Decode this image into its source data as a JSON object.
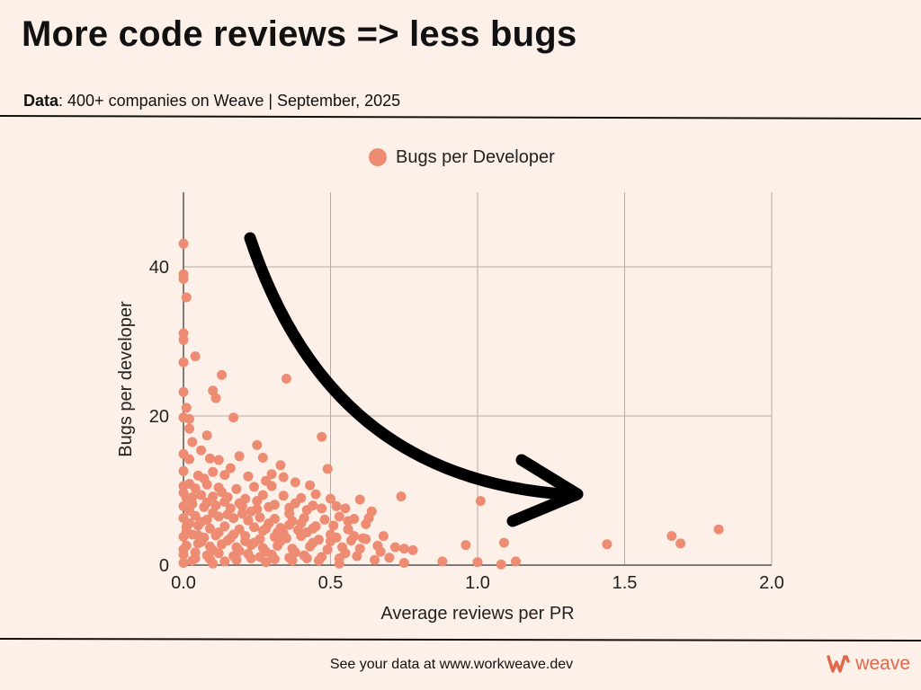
{
  "header": {
    "title": "More code reviews => less bugs",
    "subtitle_label": "Data",
    "subtitle_text": ": 400+ companies on Weave | September, 2025"
  },
  "footer": {
    "text": "See your data at www.workweave.dev",
    "brand_name": "weave"
  },
  "colors": {
    "point": "#ed8c73",
    "brand": "#e0674a",
    "background": "#fdf0e8",
    "grid": "#b8aaa4"
  },
  "chart_data": {
    "type": "scatter",
    "xlabel": "Average reviews per PR",
    "ylabel": "Bugs per developer",
    "xlim": [
      0,
      2
    ],
    "ylim": [
      0,
      50
    ],
    "xticks": [
      "0.0",
      "0.5",
      "1.0",
      "1.5",
      "2.0"
    ],
    "yticks": [
      "0",
      "20",
      "40"
    ],
    "grid": true,
    "legend_position": "top-center",
    "annotation": "downward-curving arrow from upper left to lower right",
    "series": [
      {
        "name": "Bugs per Developer",
        "points": [
          [
            0.0,
            43.1
          ],
          [
            0.0,
            39.0
          ],
          [
            0.0,
            38.4
          ],
          [
            0.01,
            35.9
          ],
          [
            0.0,
            31.1
          ],
          [
            0.0,
            30.2
          ],
          [
            0.04,
            28.0
          ],
          [
            0.0,
            27.2
          ],
          [
            0.0,
            23.2
          ],
          [
            0.01,
            21.1
          ],
          [
            0.0,
            19.8
          ],
          [
            0.02,
            19.6
          ],
          [
            0.13,
            25.5
          ],
          [
            0.35,
            25.0
          ],
          [
            0.1,
            23.4
          ],
          [
            0.11,
            22.4
          ],
          [
            0.17,
            19.8
          ],
          [
            0.02,
            18.3
          ],
          [
            0.03,
            16.5
          ],
          [
            0.08,
            17.4
          ],
          [
            0.47,
            17.2
          ],
          [
            0.25,
            16.1
          ],
          [
            0.0,
            14.9
          ],
          [
            0.02,
            14.2
          ],
          [
            0.06,
            15.4
          ],
          [
            0.09,
            14.3
          ],
          [
            0.12,
            14.1
          ],
          [
            0.19,
            14.6
          ],
          [
            0.27,
            14.4
          ],
          [
            0.33,
            13.4
          ],
          [
            0.49,
            12.9
          ],
          [
            0.0,
            12.6
          ],
          [
            0.05,
            12.0
          ],
          [
            0.1,
            12.5
          ],
          [
            0.14,
            12.1
          ],
          [
            0.22,
            11.9
          ],
          [
            0.3,
            12.2
          ],
          [
            0.0,
            10.6
          ],
          [
            0.04,
            10.3
          ],
          [
            0.08,
            10.8
          ],
          [
            0.12,
            10.4
          ],
          [
            0.18,
            10.2
          ],
          [
            0.24,
            10.5
          ],
          [
            0.3,
            10.6
          ],
          [
            0.38,
            11.1
          ],
          [
            0.43,
            10.7
          ],
          [
            0.01,
            9.0
          ],
          [
            0.06,
            9.4
          ],
          [
            0.1,
            9.2
          ],
          [
            0.15,
            9.1
          ],
          [
            0.21,
            8.9
          ],
          [
            0.27,
            9.4
          ],
          [
            0.34,
            9.3
          ],
          [
            0.4,
            9.0
          ],
          [
            0.45,
            9.5
          ],
          [
            0.5,
            8.9
          ],
          [
            0.74,
            9.2
          ],
          [
            1.01,
            8.6
          ],
          [
            0.0,
            7.9
          ],
          [
            0.03,
            8.2
          ],
          [
            0.07,
            7.8
          ],
          [
            0.11,
            8.0
          ],
          [
            0.16,
            7.6
          ],
          [
            0.2,
            7.9
          ],
          [
            0.25,
            7.5
          ],
          [
            0.29,
            7.8
          ],
          [
            0.36,
            7.7
          ],
          [
            0.42,
            7.4
          ],
          [
            0.47,
            7.6
          ],
          [
            0.55,
            7.6
          ],
          [
            0.6,
            8.8
          ],
          [
            0.64,
            7.2
          ],
          [
            0.0,
            6.3
          ],
          [
            0.04,
            6.6
          ],
          [
            0.08,
            6.1
          ],
          [
            0.12,
            6.5
          ],
          [
            0.17,
            6.3
          ],
          [
            0.22,
            6.0
          ],
          [
            0.26,
            6.4
          ],
          [
            0.31,
            6.2
          ],
          [
            0.37,
            5.9
          ],
          [
            0.41,
            6.3
          ],
          [
            0.48,
            6.1
          ],
          [
            0.53,
            6.5
          ],
          [
            0.58,
            6.2
          ],
          [
            0.63,
            6.3
          ],
          [
            0.01,
            5.1
          ],
          [
            0.05,
            5.3
          ],
          [
            0.09,
            4.9
          ],
          [
            0.14,
            5.2
          ],
          [
            0.19,
            4.8
          ],
          [
            0.24,
            5.1
          ],
          [
            0.28,
            4.9
          ],
          [
            0.33,
            5.0
          ],
          [
            0.39,
            4.7
          ],
          [
            0.44,
            4.9
          ],
          [
            0.51,
            5.3
          ],
          [
            0.56,
            4.8
          ],
          [
            0.0,
            3.8
          ],
          [
            0.03,
            4.1
          ],
          [
            0.07,
            3.7
          ],
          [
            0.11,
            4.0
          ],
          [
            0.16,
            3.6
          ],
          [
            0.21,
            3.9
          ],
          [
            0.26,
            3.5
          ],
          [
            0.31,
            3.8
          ],
          [
            0.35,
            3.6
          ],
          [
            0.4,
            3.9
          ],
          [
            0.46,
            3.4
          ],
          [
            0.52,
            3.7
          ],
          [
            0.57,
            3.3
          ],
          [
            0.62,
            3.5
          ],
          [
            0.68,
            3.9
          ],
          [
            0.01,
            2.6
          ],
          [
            0.05,
            2.9
          ],
          [
            0.09,
            2.5
          ],
          [
            0.13,
            2.8
          ],
          [
            0.18,
            2.4
          ],
          [
            0.23,
            2.7
          ],
          [
            0.27,
            2.3
          ],
          [
            0.32,
            2.6
          ],
          [
            0.37,
            2.2
          ],
          [
            0.43,
            2.5
          ],
          [
            0.49,
            2.1
          ],
          [
            0.54,
            2.4
          ],
          [
            0.6,
            2.2
          ],
          [
            0.66,
            2.6
          ],
          [
            0.72,
            2.4
          ],
          [
            0.75,
            2.2
          ],
          [
            0.78,
            2.0
          ],
          [
            0.96,
            2.7
          ],
          [
            1.09,
            3.0
          ],
          [
            0.0,
            1.4
          ],
          [
            0.04,
            1.7
          ],
          [
            0.08,
            1.3
          ],
          [
            0.12,
            1.6
          ],
          [
            0.17,
            1.2
          ],
          [
            0.22,
            1.5
          ],
          [
            0.26,
            1.1
          ],
          [
            0.3,
            1.4
          ],
          [
            0.36,
            1.0
          ],
          [
            0.41,
            1.3
          ],
          [
            0.47,
            1.1
          ],
          [
            0.53,
            0.9
          ],
          [
            0.59,
            1.2
          ],
          [
            0.65,
            0.7
          ],
          [
            0.7,
            1.0
          ],
          [
            0.0,
            0.3
          ],
          [
            0.03,
            0.6
          ],
          [
            0.1,
            0.2
          ],
          [
            0.14,
            0.5
          ],
          [
            0.28,
            0.4
          ],
          [
            0.46,
            0.6
          ],
          [
            0.53,
            0.2
          ],
          [
            0.75,
            0.3
          ],
          [
            0.88,
            0.5
          ],
          [
            1.0,
            0.4
          ],
          [
            1.08,
            0.1
          ],
          [
            1.13,
            0.5
          ],
          [
            1.44,
            2.8
          ],
          [
            1.66,
            3.9
          ],
          [
            1.69,
            2.9
          ],
          [
            1.82,
            4.8
          ],
          [
            0.02,
            7.3
          ],
          [
            0.06,
            5.8
          ],
          [
            0.1,
            7.0
          ],
          [
            0.15,
            6.8
          ],
          [
            0.2,
            6.9
          ],
          [
            0.25,
            8.6
          ],
          [
            0.29,
            5.6
          ],
          [
            0.34,
            4.3
          ],
          [
            0.38,
            8.3
          ],
          [
            0.42,
            4.4
          ],
          [
            0.02,
            10.9
          ],
          [
            0.07,
            11.6
          ],
          [
            0.13,
            9.8
          ],
          [
            0.16,
            13.0
          ],
          [
            0.28,
            11.3
          ],
          [
            0.34,
            11.8
          ],
          [
            0.01,
            4.5
          ],
          [
            0.06,
            3.1
          ],
          [
            0.1,
            2.0
          ],
          [
            0.15,
            3.3
          ],
          [
            0.19,
            1.9
          ],
          [
            0.24,
            3.0
          ],
          [
            0.28,
            1.8
          ],
          [
            0.33,
            3.2
          ],
          [
            0.38,
            1.7
          ],
          [
            0.44,
            3.0
          ],
          [
            0.5,
            3.2
          ],
          [
            0.55,
            1.6
          ],
          [
            0.61,
            3.6
          ],
          [
            0.67,
            1.8
          ],
          [
            0.0,
            2.1
          ],
          [
            0.04,
            0.9
          ],
          [
            0.09,
            0.8
          ],
          [
            0.18,
            0.7
          ],
          [
            0.23,
            0.9
          ],
          [
            0.31,
            0.8
          ],
          [
            0.37,
            0.6
          ],
          [
            0.42,
            0.9
          ],
          [
            0.02,
            5.6
          ],
          [
            0.05,
            4.0
          ],
          [
            0.12,
            4.4
          ],
          [
            0.17,
            4.1
          ],
          [
            0.21,
            3.2
          ],
          [
            0.27,
            4.6
          ],
          [
            0.32,
            4.4
          ],
          [
            0.36,
            5.4
          ],
          [
            0.4,
            5.6
          ],
          [
            0.45,
            5.2
          ],
          [
            0.5,
            4.1
          ],
          [
            0.56,
            5.9
          ],
          [
            0.62,
            5.5
          ],
          [
            0.0,
            9.7
          ],
          [
            0.03,
            9.1
          ],
          [
            0.08,
            8.4
          ],
          [
            0.14,
            8.5
          ],
          [
            0.19,
            8.3
          ],
          [
            0.23,
            7.2
          ],
          [
            0.31,
            8.1
          ],
          [
            0.36,
            6.9
          ],
          [
            0.44,
            8.0
          ],
          [
            0.52,
            7.9
          ],
          [
            0.58,
            3.9
          ]
        ]
      }
    ]
  }
}
